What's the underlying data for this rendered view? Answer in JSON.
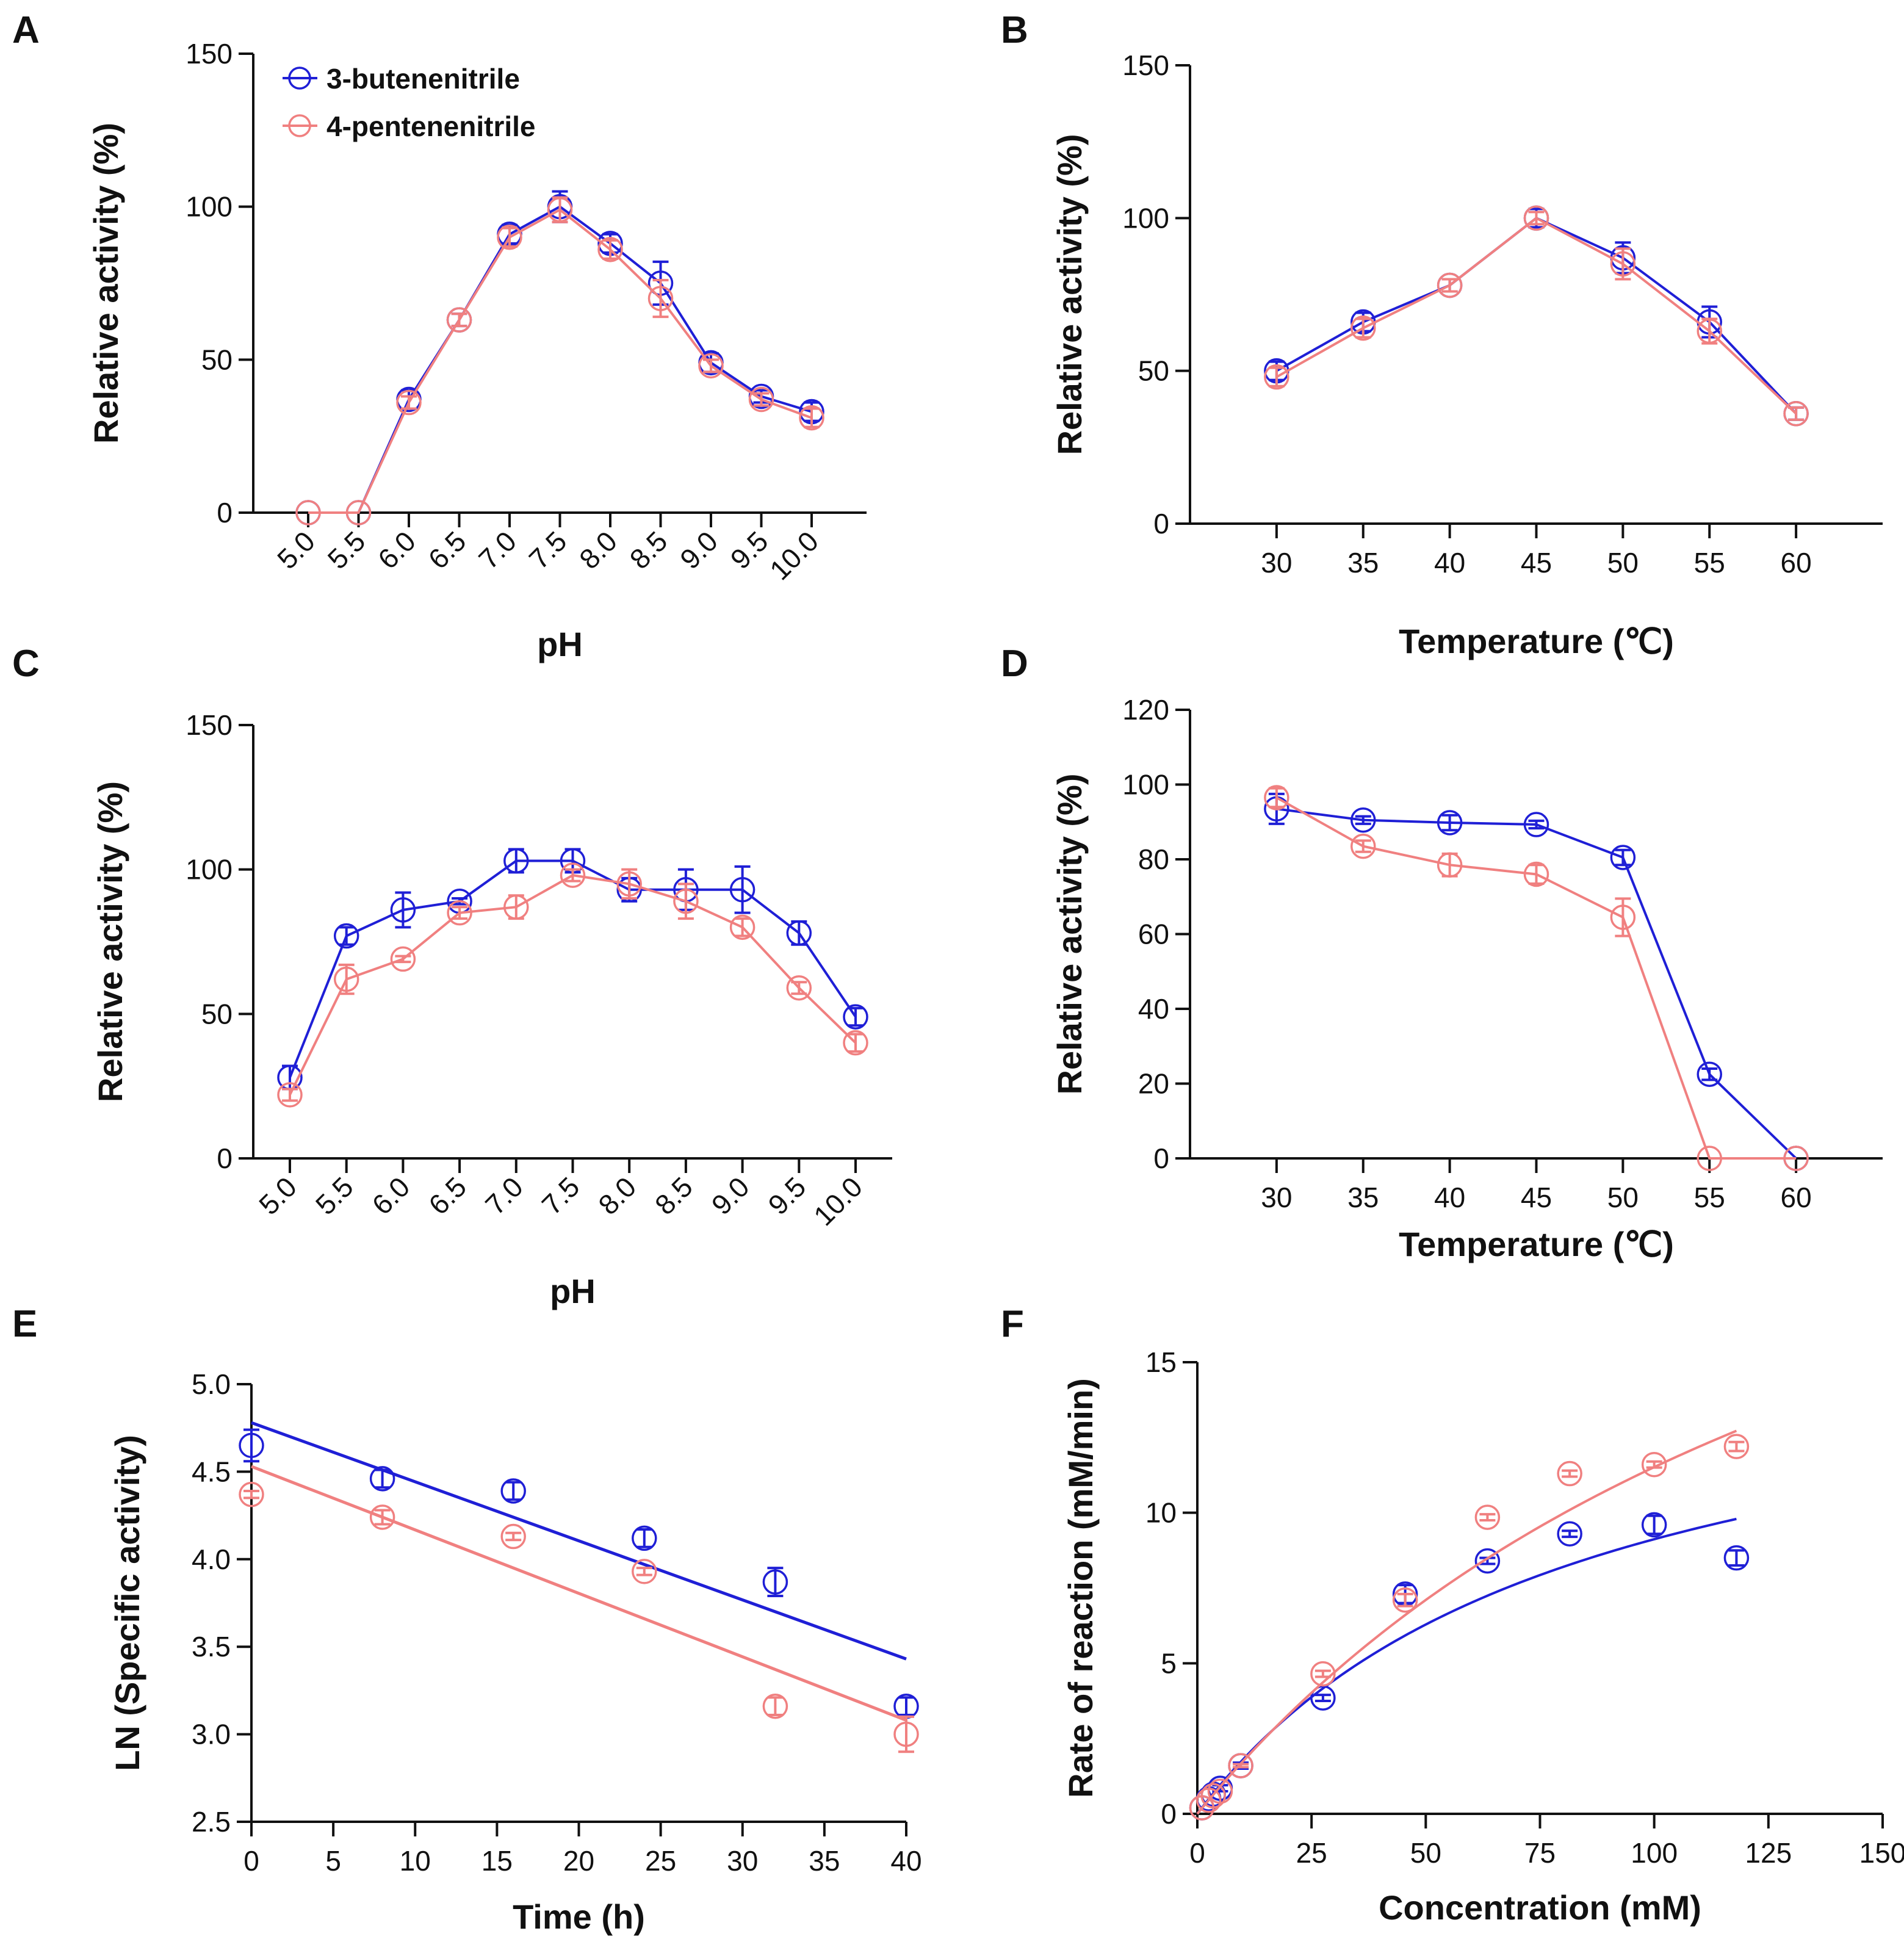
{
  "colors": {
    "series1": "#1f1fd6",
    "series2": "#f08080",
    "axis": "#111111"
  },
  "legend": [
    {
      "name": "3-butenenitrile",
      "color": "#1f1fd6"
    },
    {
      "name": "4-pentenenitrile",
      "color": "#f08080"
    }
  ],
  "chart_data": [
    {
      "panel": "A",
      "type": "line",
      "xlabel": "pH",
      "ylabel": "Relative activity (%)",
      "categories": [
        "5.0",
        "5.5",
        "6.0",
        "6.5",
        "7.0",
        "7.5",
        "8.0",
        "8.5",
        "9.0",
        "9.5",
        "10.0"
      ],
      "ylim": [
        0,
        150
      ],
      "yticks": [
        "0",
        "50",
        "100",
        "150"
      ],
      "series": [
        {
          "name": "3-butenenitrile",
          "values": [
            0,
            0,
            37,
            63,
            91,
            100,
            88,
            75,
            49,
            38,
            33
          ],
          "errors": [
            0,
            0,
            3,
            2,
            3,
            5,
            3,
            7,
            3,
            2,
            3
          ]
        },
        {
          "name": "4-pentenenitrile",
          "values": [
            0,
            0,
            36,
            63,
            90,
            99,
            86,
            70,
            48,
            37,
            31
          ],
          "errors": [
            0,
            0,
            2,
            2,
            3,
            4,
            3,
            6,
            2,
            2,
            3
          ]
        }
      ]
    },
    {
      "panel": "B",
      "type": "line",
      "xlabel": "Temperature (℃)",
      "ylabel": "Relative activity (%)",
      "x": [
        30,
        35,
        40,
        45,
        50,
        55,
        60
      ],
      "xlim": [
        25,
        65
      ],
      "xticks": [
        "30",
        "35",
        "40",
        "45",
        "50",
        "55",
        "60"
      ],
      "ylim": [
        0,
        150
      ],
      "yticks": [
        "0",
        "50",
        "100",
        "150"
      ],
      "series": [
        {
          "name": "3-butenenitrile",
          "values": [
            50,
            66,
            78,
            100,
            87,
            66,
            36
          ],
          "errors": [
            3,
            3,
            2,
            3,
            5,
            5,
            2
          ]
        },
        {
          "name": "4-pentenenitrile",
          "values": [
            48,
            64,
            78,
            100,
            85,
            63,
            36
          ],
          "errors": [
            3,
            3,
            2,
            2,
            5,
            4,
            2
          ]
        }
      ]
    },
    {
      "panel": "C",
      "type": "line",
      "xlabel": "pH",
      "ylabel": "Relative activity (%)",
      "categories": [
        "5.0",
        "5.5",
        "6.0",
        "6.5",
        "7.0",
        "7.5",
        "8.0",
        "8.5",
        "9.0",
        "9.5",
        "10.0"
      ],
      "ylim": [
        0,
        150
      ],
      "yticks": [
        "0",
        "50",
        "100",
        "150"
      ],
      "series": [
        {
          "name": "3-butenenitrile",
          "values": [
            28,
            77,
            86,
            89,
            103,
            103,
            93,
            93,
            93,
            78,
            49
          ],
          "errors": [
            4,
            3,
            6,
            1,
            4,
            4,
            4,
            7,
            8,
            4,
            3
          ]
        },
        {
          "name": "4-pentenenitrile",
          "values": [
            22,
            62,
            69,
            85,
            87,
            98,
            95,
            89,
            80,
            59,
            40
          ],
          "errors": [
            2,
            5,
            1,
            2,
            4,
            2,
            5,
            6,
            3,
            2,
            3
          ]
        }
      ]
    },
    {
      "panel": "D",
      "type": "line",
      "xlabel": "Temperature (℃)",
      "ylabel": "Relative activity (%)",
      "x": [
        30,
        35,
        40,
        45,
        50,
        55,
        60
      ],
      "xlim": [
        25,
        65
      ],
      "xticks": [
        "30",
        "35",
        "40",
        "45",
        "50",
        "55",
        "60"
      ],
      "ylim": [
        0,
        120
      ],
      "yticks": [
        "0",
        "20",
        "40",
        "60",
        "80",
        "100",
        "120"
      ],
      "series": [
        {
          "name": "3-butenenitrile",
          "values": [
            93.5,
            90.5,
            89.8,
            89.3,
            80.5,
            22.5,
            0
          ],
          "errors": [
            4,
            1,
            2,
            1,
            2,
            1.5,
            0
          ]
        },
        {
          "name": "4-pentenenitrile",
          "values": [
            96.5,
            83.5,
            78.5,
            76,
            64.5,
            0,
            0
          ],
          "errors": [
            2.5,
            1.5,
            3,
            2.5,
            5,
            0,
            0
          ]
        }
      ]
    },
    {
      "panel": "E",
      "type": "scatter",
      "xlabel": "Time (h)",
      "ylabel": "LN (Specific activity)",
      "x": [
        0,
        8,
        16,
        24,
        32,
        40
      ],
      "xlim": [
        0,
        40
      ],
      "xticks": [
        "0",
        "5",
        "10",
        "15",
        "20",
        "25",
        "30",
        "35",
        "40"
      ],
      "ylim": [
        2.5,
        5.0
      ],
      "yticks": [
        "2.5",
        "3.0",
        "3.5",
        "4.0",
        "4.5",
        "5.0"
      ],
      "series": [
        {
          "name": "3-butenenitrile",
          "values": [
            4.65,
            4.46,
            4.39,
            4.12,
            3.87,
            3.16
          ],
          "errors": [
            0.09,
            0.05,
            0.05,
            0.05,
            0.08,
            0.05
          ],
          "fit": {
            "x": [
              0,
              40
            ],
            "y": [
              4.78,
              3.43
            ]
          }
        },
        {
          "name": "4-pentenenitrile",
          "values": [
            4.37,
            4.24,
            4.13,
            3.93,
            3.16,
            3.0
          ],
          "errors": [
            0.02,
            0.04,
            0.02,
            0.02,
            0.05,
            0.1
          ],
          "fit": {
            "x": [
              0,
              40
            ],
            "y": [
              4.53,
              3.08
            ]
          }
        }
      ]
    },
    {
      "panel": "F",
      "type": "scatter",
      "xlabel": "Concentration (mM)",
      "ylabel": "Rate of reaction (mM/min)",
      "xlim": [
        0,
        150
      ],
      "xticks": [
        "0",
        "25",
        "50",
        "75",
        "100",
        "125",
        "150"
      ],
      "ylim": [
        0,
        15
      ],
      "yticks": [
        "0",
        "5",
        "10",
        "15"
      ],
      "series": [
        {
          "name": "3-butenenitrile",
          "x": [
            1,
            2.5,
            3.5,
            5,
            9.5,
            27.5,
            45.5,
            63.5,
            81.5,
            100,
            118
          ],
          "values": [
            0.2,
            0.5,
            0.65,
            0.85,
            1.6,
            3.85,
            7.3,
            8.4,
            9.3,
            9.6,
            8.5
          ],
          "errors": [
            0,
            0,
            0,
            0.1,
            0.1,
            0.1,
            0.3,
            0.1,
            0.1,
            0.3,
            0.25
          ],
          "fit": {
            "model": "michaelis-menten",
            "vmax": 16.6,
            "km": 82,
            "xrange": [
              0,
              118
            ]
          }
        },
        {
          "name": "4-pentenenitrile",
          "x": [
            1,
            2.5,
            3.5,
            5,
            9.5,
            27.5,
            45.5,
            63.5,
            81.5,
            100,
            118
          ],
          "values": [
            0.2,
            0.45,
            0.6,
            0.75,
            1.6,
            4.65,
            7.1,
            9.85,
            11.3,
            11.6,
            12.2
          ],
          "errors": [
            0,
            0,
            0,
            0,
            0.05,
            0.1,
            0.2,
            0.1,
            0.1,
            0.1,
            0.15
          ],
          "fit": {
            "model": "michaelis-menten",
            "vmax": 30.4,
            "km": 164,
            "xrange": [
              0,
              118
            ]
          }
        }
      ]
    }
  ]
}
